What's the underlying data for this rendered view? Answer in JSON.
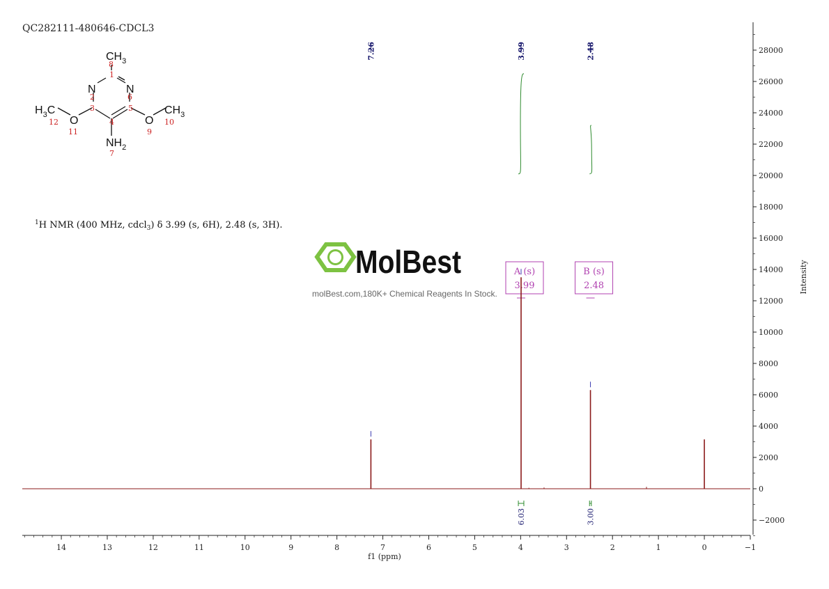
{
  "sample_id": "QC282111-480646-CDCL3",
  "nmr_description": "H NMR (400 MHz, cdcl3) δ 3.99 (s, 6H), 2.48 (s, 3H).",
  "nmr_sup": "1",
  "nmr_rest": "H NMR (400 MHz, cdcl",
  "nmr_sub": "3",
  "nmr_tail": ") δ 3.99 (s, 6H), 2.48 (s, 3H).",
  "watermark": {
    "brand": "MolBest",
    "tagline": "molBest.com,180K+ Chemical Reagents In Stock."
  },
  "molecule": {
    "ch3_top": "CH",
    "ch3_sub": "3",
    "n_left": "N",
    "n_right": "N",
    "h3c_left": "H",
    "h3c_left_sub": "3",
    "h3c_left_c": "C",
    "o_left": "O",
    "o_right": "O",
    "ch3_right": "CH",
    "ch3_right_sub": "3",
    "nh2": "NH",
    "nh2_sub": "2",
    "atom_numbers": [
      "8",
      "1",
      "2",
      "6",
      "3",
      "5",
      "4",
      "12",
      "11",
      "9",
      "10",
      "7"
    ]
  },
  "chart_data": {
    "type": "line",
    "xlabel": "f1 (ppm)",
    "ylabel": "Intensity",
    "xlim": [
      14.85,
      -1.0
    ],
    "ylim": [
      -3000,
      29500
    ],
    "x_ticks": [
      14,
      13,
      12,
      11,
      10,
      9,
      8,
      7,
      6,
      5,
      4,
      3,
      2,
      1,
      0,
      -1
    ],
    "y_ticks": [
      -2000,
      0,
      2000,
      4000,
      6000,
      8000,
      10000,
      12000,
      14000,
      16000,
      18000,
      20000,
      22000,
      24000,
      26000,
      28000
    ],
    "peaks": [
      {
        "ppm": 7.26,
        "height": 3150
      },
      {
        "ppm": 3.99,
        "height": 13500
      },
      {
        "ppm": 2.48,
        "height": 6300
      },
      {
        "ppm": 0.0,
        "height": 3150
      },
      {
        "ppm": 1.26,
        "height": 120
      },
      {
        "ppm": 3.49,
        "height": 80
      },
      {
        "ppm": 3.82,
        "height": 60
      }
    ],
    "peak_labels": [
      "7.26",
      "3.99",
      "2.48"
    ],
    "integrals": [
      {
        "from": 4.05,
        "to": 3.93,
        "y_start": 20100,
        "y_end": 26500,
        "value": "6.03"
      },
      {
        "from": 2.5,
        "to": 2.46,
        "y_start": 20100,
        "y_end": 23200,
        "value": "3.00"
      }
    ],
    "multiplets": [
      {
        "label": "A (s)",
        "shift": "3.99",
        "ppm": 3.99
      },
      {
        "label": "B (s)",
        "shift": "2.48",
        "ppm": 2.48
      }
    ],
    "colors": {
      "spectrum": "#8b1a1a",
      "integral": "#2e8b2e",
      "peak_label": "#1a1a6e",
      "multiplet_box": "#b040b0",
      "watermark": "#7dc242"
    }
  }
}
